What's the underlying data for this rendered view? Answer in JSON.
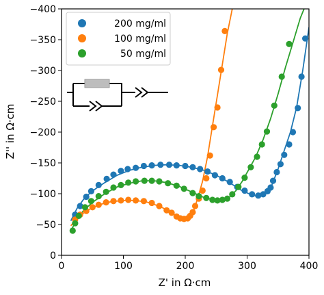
{
  "chart_data": {
    "type": "scatter",
    "xlabel": "Z' in Ω·cm",
    "ylabel": "Z'' in Ω·cm",
    "xlim": [
      0,
      400
    ],
    "ylim": [
      0,
      -400
    ],
    "x_ticks": [
      0,
      100,
      200,
      300,
      400
    ],
    "x_tick_labels": [
      "0",
      "100",
      "200",
      "300",
      "400"
    ],
    "y_ticks": [
      0,
      -50,
      -100,
      -150,
      -200,
      -250,
      -300,
      -350,
      -400
    ],
    "y_tick_labels": [
      "0",
      "−50",
      "−100",
      "−150",
      "−200",
      "−250",
      "−300",
      "−350",
      "−400"
    ],
    "legend_position": "top-left",
    "inset": "equivalent-circuit (resistor in parallel with constant-phase element, in series with constant-phase element)",
    "series": [
      {
        "name": "200 mg/ml",
        "color": "#1f77b4",
        "points": [
          [
            22,
            -66
          ],
          [
            30,
            -80
          ],
          [
            40,
            -95
          ],
          [
            48,
            -104
          ],
          [
            60,
            -114
          ],
          [
            73,
            -124
          ],
          [
            84,
            -131
          ],
          [
            96,
            -137
          ],
          [
            107,
            -140
          ],
          [
            120,
            -142
          ],
          [
            133,
            -145
          ],
          [
            146,
            -146
          ],
          [
            160,
            -147
          ],
          [
            174,
            -147
          ],
          [
            186,
            -146
          ],
          [
            200,
            -145
          ],
          [
            212,
            -143
          ],
          [
            224,
            -140
          ],
          [
            236,
            -136
          ],
          [
            248,
            -130
          ],
          [
            260,
            -125
          ],
          [
            272,
            -119
          ],
          [
            284,
            -111
          ],
          [
            296,
            -105
          ],
          [
            308,
            -99
          ],
          [
            318,
            -97
          ],
          [
            326,
            -99
          ],
          [
            333,
            -104
          ],
          [
            338,
            -110
          ],
          [
            342,
            -121
          ],
          [
            348,
            -135
          ],
          [
            354,
            -148
          ],
          [
            360,
            -163
          ],
          [
            368,
            -180
          ],
          [
            374,
            -200
          ],
          [
            382,
            -239
          ],
          [
            388,
            -290
          ],
          [
            394,
            -352
          ]
        ],
        "fit": [
          [
            15,
            -56
          ],
          [
            25,
            -76
          ],
          [
            35,
            -90
          ],
          [
            45,
            -100
          ],
          [
            55,
            -108
          ],
          [
            70,
            -118
          ],
          [
            90,
            -130
          ],
          [
            110,
            -138
          ],
          [
            130,
            -143
          ],
          [
            150,
            -146
          ],
          [
            170,
            -147
          ],
          [
            190,
            -146
          ],
          [
            210,
            -143
          ],
          [
            230,
            -138
          ],
          [
            250,
            -130
          ],
          [
            270,
            -119
          ],
          [
            290,
            -106
          ],
          [
            305,
            -99
          ],
          [
            315,
            -96
          ],
          [
            325,
            -97
          ],
          [
            332,
            -101
          ],
          [
            340,
            -114
          ],
          [
            350,
            -140
          ],
          [
            360,
            -170
          ],
          [
            370,
            -200
          ],
          [
            380,
            -240
          ],
          [
            390,
            -300
          ],
          [
            400,
            -370
          ]
        ]
      },
      {
        "name": "100 mg/ml",
        "color": "#ff7f0e",
        "points": [
          [
            22,
            -58
          ],
          [
            30,
            -66
          ],
          [
            40,
            -72
          ],
          [
            50,
            -78
          ],
          [
            60,
            -82
          ],
          [
            72,
            -86
          ],
          [
            84,
            -88
          ],
          [
            96,
            -89
          ],
          [
            108,
            -90
          ],
          [
            120,
            -89
          ],
          [
            133,
            -88
          ],
          [
            146,
            -85
          ],
          [
            158,
            -80
          ],
          [
            170,
            -73
          ],
          [
            178,
            -69
          ],
          [
            186,
            -63
          ],
          [
            192,
            -60
          ],
          [
            198,
            -59
          ],
          [
            204,
            -60
          ],
          [
            208,
            -64
          ],
          [
            212,
            -70
          ],
          [
            216,
            -80
          ],
          [
            222,
            -92
          ],
          [
            228,
            -105
          ],
          [
            234,
            -125
          ],
          [
            240,
            -162
          ],
          [
            246,
            -208
          ],
          [
            252,
            -240
          ],
          [
            258,
            -301
          ],
          [
            264,
            -364
          ]
        ],
        "fit": [
          [
            15,
            -48
          ],
          [
            25,
            -60
          ],
          [
            40,
            -72
          ],
          [
            60,
            -82
          ],
          [
            80,
            -87
          ],
          [
            100,
            -89
          ],
          [
            120,
            -89
          ],
          [
            140,
            -86
          ],
          [
            160,
            -79
          ],
          [
            175,
            -71
          ],
          [
            185,
            -64
          ],
          [
            195,
            -59
          ],
          [
            202,
            -59
          ],
          [
            208,
            -63
          ],
          [
            214,
            -74
          ],
          [
            220,
            -92
          ],
          [
            228,
            -120
          ],
          [
            236,
            -160
          ],
          [
            244,
            -210
          ],
          [
            252,
            -260
          ],
          [
            260,
            -310
          ],
          [
            268,
            -360
          ],
          [
            276,
            -400
          ]
        ]
      },
      {
        "name": "50 mg/ml",
        "color": "#2ca02c",
        "points": [
          [
            18,
            -40
          ],
          [
            22,
            -52
          ],
          [
            28,
            -64
          ],
          [
            38,
            -78
          ],
          [
            48,
            -88
          ],
          [
            60,
            -96
          ],
          [
            72,
            -103
          ],
          [
            84,
            -110
          ],
          [
            96,
            -114
          ],
          [
            108,
            -118
          ],
          [
            120,
            -120
          ],
          [
            134,
            -121
          ],
          [
            146,
            -121
          ],
          [
            158,
            -120
          ],
          [
            172,
            -117
          ],
          [
            186,
            -113
          ],
          [
            198,
            -108
          ],
          [
            212,
            -101
          ],
          [
            222,
            -96
          ],
          [
            234,
            -93
          ],
          [
            244,
            -90
          ],
          [
            252,
            -89
          ],
          [
            260,
            -90
          ],
          [
            268,
            -92
          ],
          [
            276,
            -99
          ],
          [
            286,
            -111
          ],
          [
            296,
            -126
          ],
          [
            306,
            -143
          ],
          [
            316,
            -160
          ],
          [
            324,
            -180
          ],
          [
            332,
            -201
          ],
          [
            344,
            -243
          ],
          [
            356,
            -290
          ],
          [
            368,
            -343
          ]
        ],
        "fit": [
          [
            15,
            -40
          ],
          [
            25,
            -58
          ],
          [
            35,
            -72
          ],
          [
            50,
            -86
          ],
          [
            70,
            -100
          ],
          [
            90,
            -111
          ],
          [
            110,
            -117
          ],
          [
            130,
            -121
          ],
          [
            150,
            -121
          ],
          [
            170,
            -118
          ],
          [
            190,
            -112
          ],
          [
            210,
            -103
          ],
          [
            230,
            -94
          ],
          [
            250,
            -89
          ],
          [
            262,
            -90
          ],
          [
            272,
            -95
          ],
          [
            282,
            -105
          ],
          [
            292,
            -120
          ],
          [
            302,
            -138
          ],
          [
            314,
            -160
          ],
          [
            326,
            -188
          ],
          [
            338,
            -222
          ],
          [
            350,
            -262
          ],
          [
            362,
            -305
          ],
          [
            374,
            -345
          ],
          [
            386,
            -385
          ],
          [
            392,
            -400
          ]
        ]
      }
    ]
  }
}
